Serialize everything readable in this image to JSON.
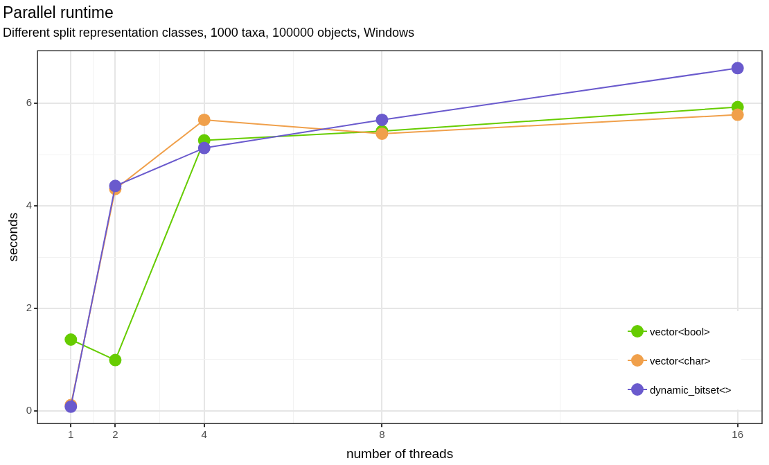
{
  "chart_data": {
    "type": "line",
    "title": "Parallel runtime",
    "subtitle": "Different split representation classes, 1000 taxa, 100000 objects, Windows",
    "xlabel": "number of threads",
    "ylabel": "seconds",
    "x": [
      1,
      2,
      4,
      8,
      16
    ],
    "series": [
      {
        "name": "vector<bool>",
        "color": "#66cc00",
        "values": [
          1.39,
          0.99,
          5.28,
          5.46,
          5.93
        ]
      },
      {
        "name": "vector<char>",
        "color": "#f0a04b",
        "values": [
          0.11,
          4.33,
          5.68,
          5.41,
          5.78
        ]
      },
      {
        "name": "dynamic_bitset<>",
        "color": "#6a5acd",
        "values": [
          0.08,
          4.39,
          5.13,
          5.68,
          6.69
        ]
      }
    ],
    "xlim": [
      0.25,
      16.55
    ],
    "xticks": [
      1,
      {
        "value": 1.5,
        "label": null
      },
      2,
      {
        "value": 3,
        "label": null
      },
      4,
      {
        "value": 6,
        "label": null
      },
      8,
      {
        "value": 12,
        "label": null
      },
      16
    ],
    "ylim": [
      -0.25,
      7.03
    ],
    "yticks": [
      0,
      {
        "value": 1,
        "label": null
      },
      2,
      {
        "value": 3,
        "label": null
      },
      4,
      {
        "value": 5,
        "label": null
      },
      6
    ],
    "grid": true,
    "legend": "bottom right",
    "marker": "circle",
    "line_style": "solid"
  }
}
